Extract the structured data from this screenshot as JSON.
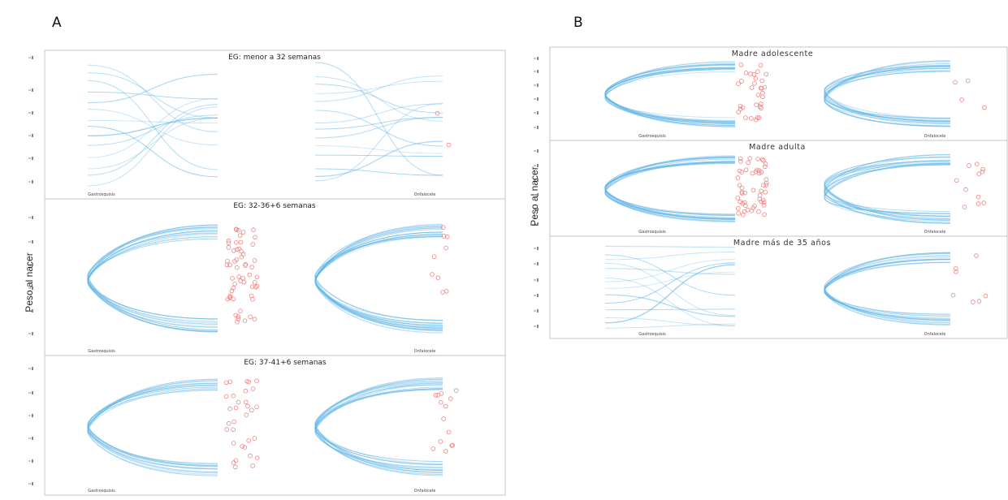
{
  "panel_labels": {
    "a": "A",
    "b": "B"
  },
  "colors": {
    "curve": "#5fb4e6",
    "point": "#f08080",
    "frame": "#c4c4c4"
  },
  "chart_data": [
    {
      "panel": "A",
      "type": "scatter",
      "ylabel": "Peso al nacer",
      "facets": [
        {
          "title": "EG: menor a 32 semanas",
          "groups": [
            {
              "name": "Gastrosquisis",
              "n_points": 0
            },
            {
              "name": "Onfalocele",
              "n_points": 2
            }
          ]
        },
        {
          "title": "EG: 32-36+6 semanas",
          "groups": [
            {
              "name": "Gastrosquisis",
              "n_points": 58
            },
            {
              "name": "Onfalocele",
              "n_points": 9
            }
          ]
        },
        {
          "title": "EG: 37-41+6 semanas",
          "groups": [
            {
              "name": "Gastrosquisis",
              "n_points": 32
            },
            {
              "name": "Onfalocele",
              "n_points": 14
            }
          ]
        }
      ]
    },
    {
      "panel": "B",
      "type": "scatter",
      "ylabel": "Peso al nacer",
      "facets": [
        {
          "title": "Madre adolescente",
          "groups": [
            {
              "name": "Gastrosquisis",
              "n_points": 32
            },
            {
              "name": "Onfalocele",
              "n_points": 4
            }
          ]
        },
        {
          "title": "Madre adulta",
          "groups": [
            {
              "name": "Gastrosquisis",
              "n_points": 52
            },
            {
              "name": "Onfalocele",
              "n_points": 11
            }
          ]
        },
        {
          "title": "Madre  más de 35 años",
          "groups": [
            {
              "name": "Gastrosquisis",
              "n_points": 0
            },
            {
              "name": "Onfalocele",
              "n_points": 7
            }
          ]
        }
      ]
    }
  ]
}
